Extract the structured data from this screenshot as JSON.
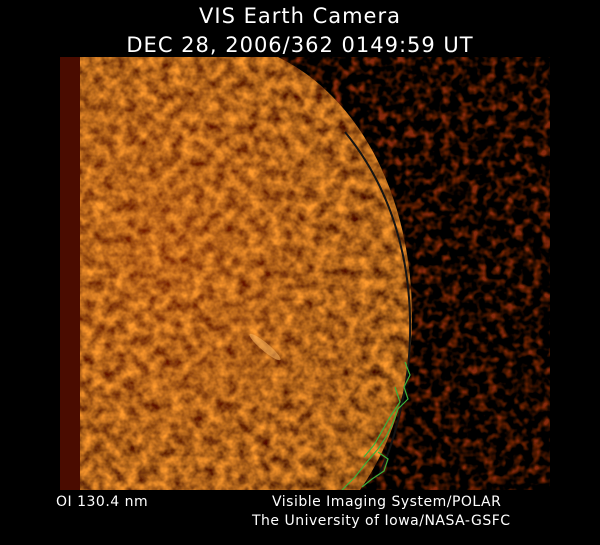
{
  "header": {
    "title": "VIS Earth Camera",
    "timestamp": "DEC 28, 2006/362 0149:59 UT"
  },
  "footer": {
    "wavelength": "OI  130.4 nm",
    "instrument": "Visible Imaging System/POLAR",
    "institution": "The University of Iowa/NASA-GSFC"
  },
  "image": {
    "colors": {
      "dark_red": "#3a0700",
      "orange": "#d0601a",
      "bright": "#ffb040",
      "limb_line": "#1a1a1a",
      "coastline": "#3cb43c"
    }
  }
}
